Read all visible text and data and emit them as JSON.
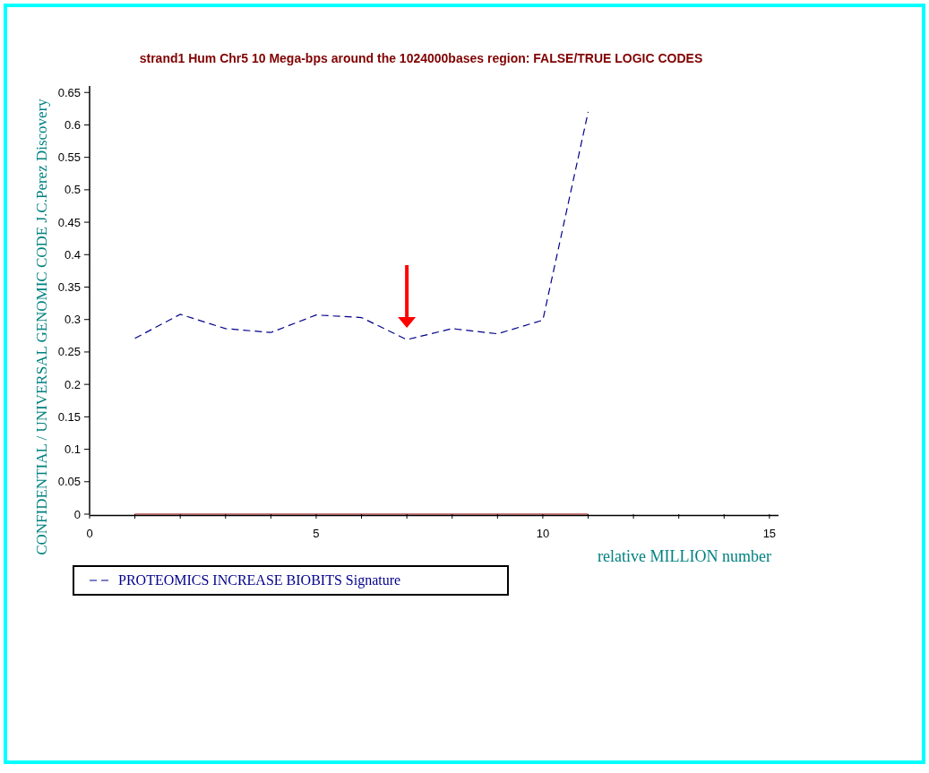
{
  "chart_data": {
    "type": "line",
    "title": "strand1 Hum Chr5 10 Mega-bps around the 1024000bases region: FALSE/TRUE LOGIC CODES",
    "xlabel": "relative MILLION number",
    "ylabel": "CONFIDENTIAL / UNIVERSAL GENOMIC CODE J.C.Perez Discovery",
    "x": [
      1,
      2,
      3,
      4,
      5,
      6,
      7,
      8,
      9,
      10,
      11
    ],
    "series": [
      {
        "name": "PROTEOMICS INCREASE BIOBITS Signature",
        "color": "#00008b",
        "line_style": "dashed",
        "values": [
          0.271,
          0.308,
          0.286,
          0.28,
          0.307,
          0.303,
          0.269,
          0.286,
          0.278,
          0.299,
          0.62
        ]
      },
      {
        "color": "#8b0000",
        "line_style": "solid",
        "values": [
          0,
          0,
          0,
          0,
          0,
          0,
          0,
          0,
          0,
          0,
          0
        ]
      }
    ],
    "xlim": [
      0,
      15.2
    ],
    "xticks": [
      0,
      {
        "value": 1,
        "label": null
      },
      {
        "value": 2,
        "label": null
      },
      {
        "value": 3,
        "label": null
      },
      {
        "value": 4,
        "label": null
      },
      5,
      {
        "value": 6,
        "label": null
      },
      {
        "value": 7,
        "label": null
      },
      {
        "value": 8,
        "label": null
      },
      {
        "value": 9,
        "label": null
      },
      10,
      {
        "value": 11,
        "label": null
      },
      {
        "value": 12,
        "label": null
      },
      {
        "value": 13,
        "label": null
      },
      {
        "value": 14,
        "label": null
      },
      15
    ],
    "ylim": [
      0,
      0.66
    ],
    "yticks": [
      0,
      0.05,
      0.1,
      0.15,
      0.2,
      0.25,
      0.3,
      0.35,
      0.4,
      0.45,
      0.5,
      0.55,
      0.6,
      0.65
    ],
    "grid": false,
    "legend": "bottom left",
    "marker": "none"
  }
}
